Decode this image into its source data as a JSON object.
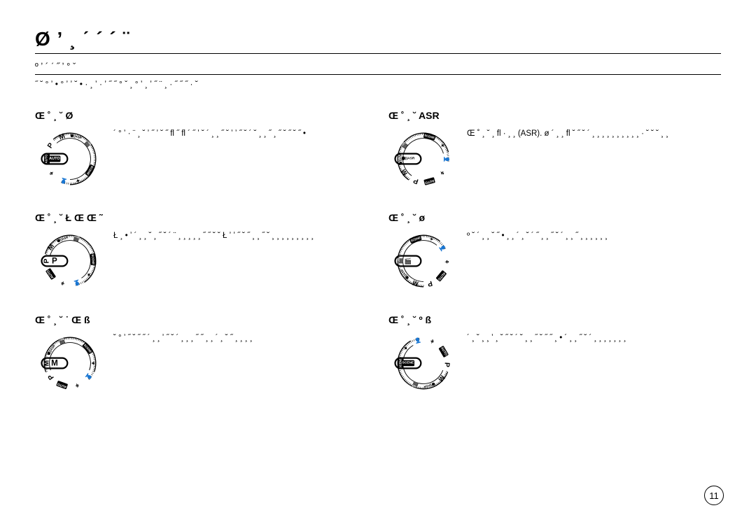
{
  "page": {
    "title": "Ø ʼ ¸ ˊ   ´   ´ ¨",
    "subtitle": "º ʼ ´ ˊ ˝   ʼ ° ˇ",
    "intro": "˝ ˘ ° ʼ •   ° ʼ ʼ ˘ •   · ¸ ʼ   ·   ʼ ˝ ˝   ° ˇ   ¸   ° ʼ ¸ ʼ ˝   ¨ ¸ · ˝   ˝ ˝ · ˘",
    "pageNumber": "11"
  },
  "modes": [
    {
      "id": "auto",
      "title": "Œ ˚ ¸ ˘   Ø",
      "desc": "´ ° ʼ ·   ¨ ¸   ˘ ʼ   ˝   ʼ   ˘ ˝   fl   ˝   fl ´ ˝   ʼ   ˘   ´ ¸   ¸   ˝   ˘   ʼ ʼ   ˝   ˘   ´ ˘   ¸   ¸ ˝ ¸   ˝   ˘ ˝   ˘   ˝ •",
      "selected": "AUTO",
      "rotation": -70
    },
    {
      "id": "program",
      "title": "Œ ˚ ¸ ˘ Ł Œ Œ   ˜",
      "desc": "Ł ¸ •   ʼ   ´ ¸ ¸   ˘   ¸   ˝   ˘   ´ ¨ ¸   ¸ ¸ ¸   ¸   ˝ ˝   ˘   ˘   Ł ʼ   ʼ   ˝   ˘ ˝   ¸   ¸   ˝   ˘   ¸ ¸ ¸   ¸ ¸ ¸   ¸ ¸ ¸",
      "selected": "P",
      "rotation": -36
    },
    {
      "id": "manual",
      "title": "Œ ˚ ¸ ˘ ˙ Œ   ß",
      "desc": "˘ ° ʼ   ˝   ˘ ˝   ˝   ´ ¸   ¸   ʼ   ˝   ˘   ´ ¸ ¸   ¸   ˝ ˝ ¸ ¸   ´ ¸   ˘ ˝   ¸   ¸ ¸ ¸",
      "selected": "M",
      "rotation": 0
    },
    {
      "id": "asr",
      "title": "Œ ˚ ¸ ˘ ASR",
      "desc": "Œ ˚ ¸ ˘ ¸   fl · ¸   ¸   (ASR). ø   ´ ¸ ¸   fl   ˘   ˝   ˘   ´ ¸ ¸   ¸   ¸ ¸   ¸ ¸ ¸   ¸   ¸ · ˘   ˘   ˘   ¸ ¸",
      "selected": "ASR",
      "rotation": 35
    },
    {
      "id": "movie",
      "title": "Œ ˚ ¸ ˘ ø",
      "desc": "º ˘   ´ ¸   ¸   ˘   ˝ •   ¸   ¸   ´ ¸   ˘   ´ ˝   ¸   ¸   ˝   ˘   ´ ¸ ¸   ˝   ¸   ¸ ¸   ¸ ¸ ¸",
      "selected": "MOVIE",
      "rotation": 70
    },
    {
      "id": "scene",
      "title": "Œ ˚ ¸ ˘ º ß",
      "desc": "´ ¸ ˘   ¸   ¸ ʼ ¸   ˘   ˝ ˘   ´ ˘   ¸   ¸   ˝   ˘   ˝ ˝   ¸   •   ´ ¸   ¸   ˝   ˘   ´ ¸ ¸   ¸   ¸   ¸ ¸ ¸",
      "selected": "SCENE",
      "rotation": 140
    }
  ],
  "dial": {
    "outerRadius": 40,
    "innerRadius": 32,
    "strokeColor": "#000000",
    "bgColor": "#ffffff",
    "selectorStroke": "#000000",
    "selectorFill": "#ffffff",
    "positions": [
      {
        "id": "AUTO",
        "angle": -70,
        "label": "AUTO",
        "box": true,
        "invert": true,
        "fontSize": 5.2
      },
      {
        "id": "P",
        "angle": -36,
        "label": "P",
        "box": false,
        "invert": false,
        "fontSize": 11
      },
      {
        "id": "M",
        "angle": 0,
        "label": "M",
        "box": false,
        "invert": false,
        "fontSize": 11
      },
      {
        "id": "ASR",
        "angle": 35,
        "label": "⬤))ASR",
        "box": false,
        "invert": false,
        "fontSize": 4.6
      },
      {
        "id": "MOVIE",
        "angle": 70,
        "label": "🎬",
        "box": false,
        "invert": false,
        "fontSize": 8
      },
      {
        "id": "SCENE",
        "angle": 140,
        "label": "SCENE",
        "box": true,
        "invert": true,
        "fontSize": 4.6
      },
      {
        "id": "NIGHT",
        "angle": 180,
        "label": "✦",
        "box": false,
        "invert": false,
        "fontSize": 8
      },
      {
        "id": "PORT",
        "angle": 216,
        "label": "👤",
        "box": false,
        "invert": false,
        "fontSize": 8
      },
      {
        "id": "CHILD",
        "angle": 252,
        "label": "⚘",
        "box": false,
        "invert": false,
        "fontSize": 8
      }
    ]
  }
}
